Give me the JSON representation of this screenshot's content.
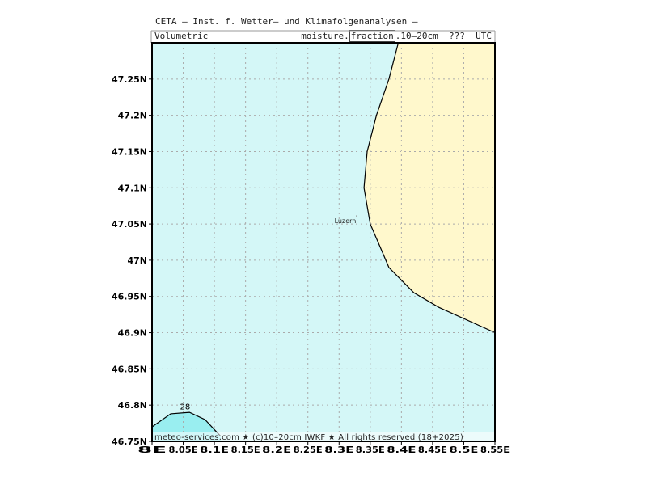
{
  "header": {
    "title": "CETA — Inst. f. Wetter— und Klimafolgenanalysen —",
    "subtitle_left": "Volumetric",
    "subtitle_pre": "moisture.",
    "subtitle_box": "fraction",
    "subtitle_post": ".10–20cm  ???  UTC"
  },
  "footer": {
    "credit": "meteo-services.com ★ (c)10–20cm IWKF ★ All rights reserved (18+2025)"
  },
  "city": {
    "name": "Luzern",
    "lon": 8.31,
    "lat": 47.05
  },
  "contour_label": "28",
  "chart_data": {
    "type": "map",
    "x_range": [
      8.0,
      8.55
    ],
    "y_range": [
      46.75,
      47.3
    ],
    "x_ticks": [
      8.0,
      8.05,
      8.1,
      8.15,
      8.2,
      8.25,
      8.3,
      8.35,
      8.4,
      8.45,
      8.5,
      8.55
    ],
    "x_tick_labels": [
      "8E",
      "8.05E",
      "8.1E",
      "8.15E",
      "8.2E",
      "8.25E",
      "8.3E",
      "8.35E",
      "8.4E",
      "8.45E",
      "8.5E",
      "8.55E"
    ],
    "y_ticks": [
      46.75,
      46.8,
      46.85,
      46.9,
      46.95,
      47.0,
      47.05,
      47.1,
      47.15,
      47.2,
      47.25
    ],
    "y_tick_labels": [
      "46.75N",
      "46.8N",
      "46.85N",
      "46.9N",
      "46.95N",
      "47N",
      "47.05N",
      "47.1N",
      "47.15N",
      "47.2N",
      "47.25N"
    ],
    "grid": true,
    "colors": {
      "background_fill": "#d4f7f7",
      "east_fill": "#fff8cc",
      "low_fill": "#99eef0",
      "grid": "#aaaaaa"
    },
    "east_region_boundary": [
      [
        8.395,
        47.3
      ],
      [
        8.38,
        47.25
      ],
      [
        8.36,
        47.2
      ],
      [
        8.345,
        47.15
      ],
      [
        8.34,
        47.1
      ],
      [
        8.35,
        47.05
      ],
      [
        8.365,
        47.02
      ],
      [
        8.38,
        46.99
      ],
      [
        8.42,
        46.955
      ],
      [
        8.46,
        46.935
      ],
      [
        8.55,
        46.9
      ]
    ],
    "low_region_boundary": [
      [
        8.0,
        46.77
      ],
      [
        8.03,
        46.788
      ],
      [
        8.06,
        46.79
      ],
      [
        8.085,
        46.78
      ],
      [
        8.11,
        46.757
      ]
    ]
  }
}
